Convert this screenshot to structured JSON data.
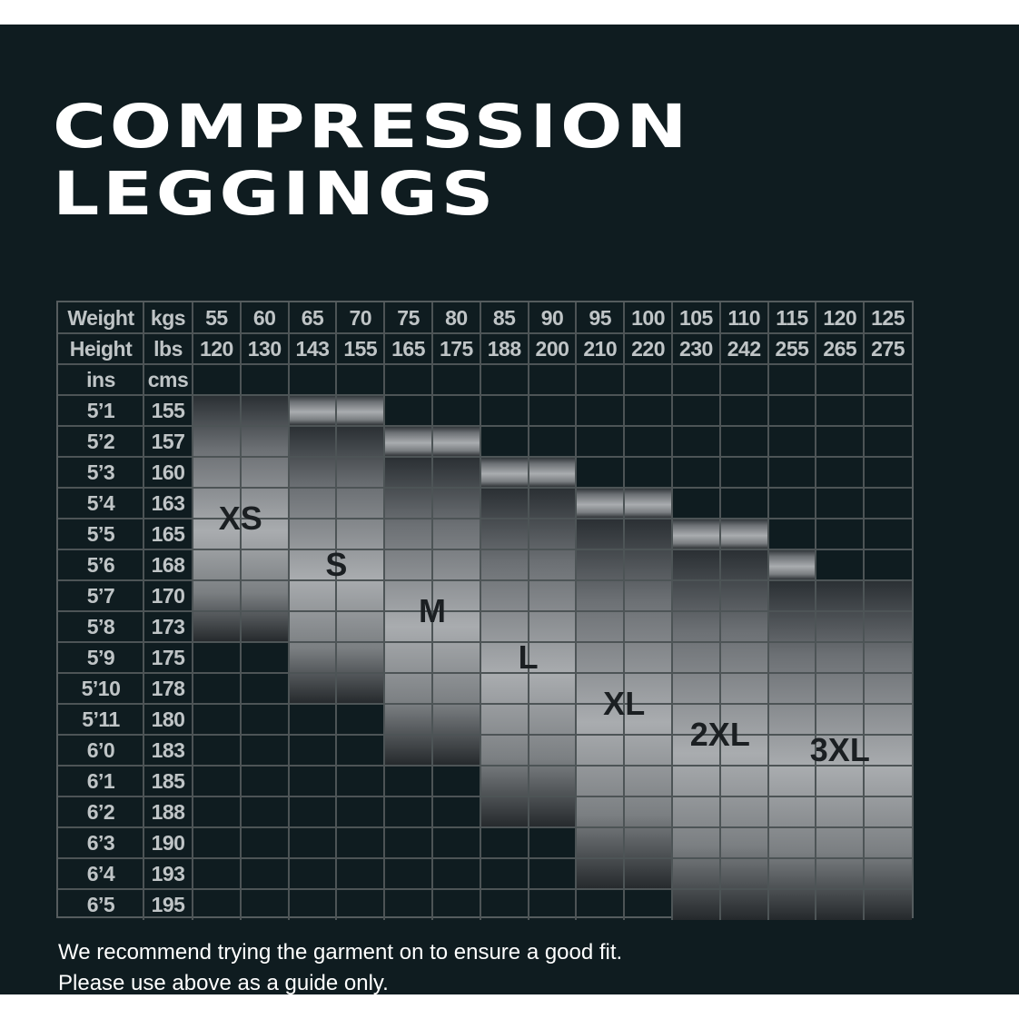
{
  "title": {
    "line1": "COMPRESSION",
    "line2": "LEGGINGS"
  },
  "table": {
    "header_rows": [
      {
        "label": "Weight",
        "unit": "kgs",
        "values": [
          "55",
          "60",
          "65",
          "70",
          "75",
          "80",
          "85",
          "90",
          "95",
          "100",
          "105",
          "110",
          "115",
          "120",
          "125"
        ]
      },
      {
        "label": "Height",
        "unit": "lbs",
        "values": [
          "120",
          "130",
          "143",
          "155",
          "165",
          "175",
          "188",
          "200",
          "210",
          "220",
          "230",
          "242",
          "255",
          "265",
          "275"
        ]
      },
      {
        "label": "ins",
        "unit": "cms",
        "values": []
      }
    ],
    "rows": [
      {
        "ins": "5’1",
        "cms": "155"
      },
      {
        "ins": "5’2",
        "cms": "157"
      },
      {
        "ins": "5’3",
        "cms": "160"
      },
      {
        "ins": "5’4",
        "cms": "163"
      },
      {
        "ins": "5’5",
        "cms": "165"
      },
      {
        "ins": "5’6",
        "cms": "168"
      },
      {
        "ins": "5’7",
        "cms": "170"
      },
      {
        "ins": "5’8",
        "cms": "173"
      },
      {
        "ins": "5’9",
        "cms": "175"
      },
      {
        "ins": "5’10",
        "cms": "178"
      },
      {
        "ins": "5’11",
        "cms": "180"
      },
      {
        "ins": "6’0",
        "cms": "183"
      },
      {
        "ins": "6’1",
        "cms": "185"
      },
      {
        "ins": "6’2",
        "cms": "188"
      },
      {
        "ins": "6’3",
        "cms": "190"
      },
      {
        "ins": "6’4",
        "cms": "193"
      },
      {
        "ins": "6’5",
        "cms": "195"
      }
    ],
    "sizes": [
      {
        "label": "XS",
        "weight_from": "55",
        "weight_to": "60",
        "height_from": "155",
        "height_to": "173",
        "blocks": [
          [
            0,
            1,
            0,
            7
          ]
        ]
      },
      {
        "label": "S",
        "weight_from": "65",
        "weight_to": "70",
        "height_from": "155",
        "height_to": "178",
        "blocks": [
          [
            2,
            3,
            0,
            0
          ],
          [
            2,
            3,
            1,
            9
          ]
        ]
      },
      {
        "label": "M",
        "weight_from": "75",
        "weight_to": "80",
        "height_from": "157",
        "height_to": "183",
        "blocks": [
          [
            4,
            5,
            1,
            1
          ],
          [
            4,
            5,
            2,
            11
          ]
        ]
      },
      {
        "label": "L",
        "weight_from": "85",
        "weight_to": "90",
        "height_from": "160",
        "height_to": "188",
        "blocks": [
          [
            6,
            7,
            2,
            2
          ],
          [
            6,
            7,
            3,
            13
          ]
        ]
      },
      {
        "label": "XL",
        "weight_from": "95",
        "weight_to": "100",
        "height_from": "163",
        "height_to": "193",
        "blocks": [
          [
            8,
            9,
            3,
            3
          ],
          [
            8,
            9,
            4,
            15
          ]
        ]
      },
      {
        "label": "2XL",
        "weight_from": "105",
        "weight_to": "110",
        "height_from": "165",
        "height_to": "195",
        "blocks": [
          [
            10,
            11,
            4,
            4
          ],
          [
            10,
            11,
            5,
            16
          ]
        ]
      },
      {
        "label": "3XL",
        "weight_from": "115",
        "weight_to": "125",
        "height_from": "168",
        "height_to": "195",
        "blocks": [
          [
            12,
            12,
            5,
            5
          ],
          [
            12,
            14,
            6,
            16
          ]
        ]
      }
    ]
  },
  "notes": {
    "line1": "We recommend trying the garment on to ensure a good fit.",
    "line2": "Please use above as a guide only."
  },
  "colors": {
    "background": "#0f1c20",
    "text": "#ffffff",
    "grid": "#4d5456",
    "header_text": "#bfc4c6",
    "size_label": "#1b1f22"
  }
}
